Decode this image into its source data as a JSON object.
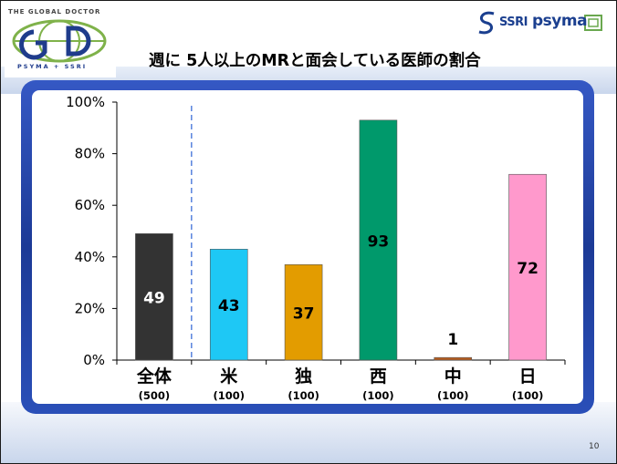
{
  "header": {
    "logo_left_tagline": "THE GLOBAL DOCTOR",
    "logo_left_sub": "PSYMA + SSRI",
    "logo_right_ssri": "SSRI",
    "logo_right_psyma": "psyma",
    "title": "週に 5人以上のMRと面会している医師の割合"
  },
  "footer": {
    "page_number": "10"
  },
  "colors": {
    "frame": "#1c3a96",
    "plot_bg": "#ffffff",
    "divider": "#3d6fd8"
  },
  "chart_data": {
    "type": "bar",
    "title": "",
    "xlabel": "",
    "ylabel": "",
    "ylim": [
      0,
      100
    ],
    "yticks": [
      "0%",
      "20%",
      "40%",
      "60%",
      "80%",
      "100%"
    ],
    "categories": [
      "全体",
      "米",
      "独",
      "西",
      "中",
      "日"
    ],
    "sample_sizes": [
      "(500)",
      "(100)",
      "(100)",
      "(100)",
      "(100)",
      "(100)"
    ],
    "values": [
      49,
      43,
      37,
      93,
      1,
      72
    ],
    "data_labels": [
      "49",
      "43",
      "37",
      "93",
      "1",
      "72"
    ],
    "bar_colors": [
      "#333333",
      "#1ec8f5",
      "#e39c00",
      "#00996b",
      "#b85c1e",
      "#ff99cc"
    ],
    "label_colors": [
      "#ffffff",
      "#000000",
      "#000000",
      "#000000",
      "#000000",
      "#000000"
    ]
  }
}
